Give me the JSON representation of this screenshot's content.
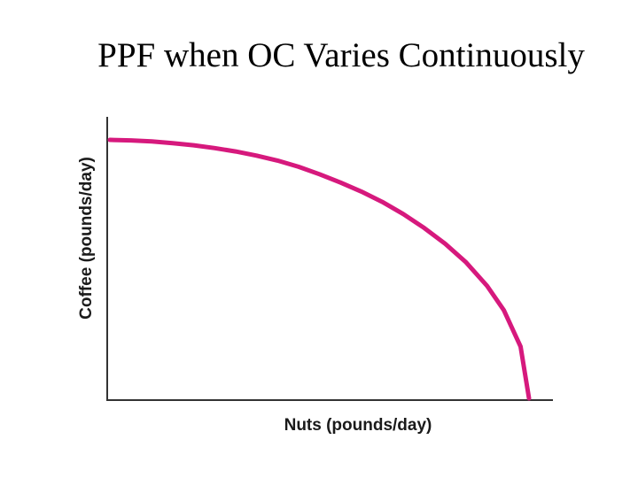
{
  "slide": {
    "title": "PPF when OC Varies Continuously"
  },
  "chart_data": {
    "type": "line",
    "xlabel": "Nuts (pounds/day)",
    "ylabel": "Coffee (pounds/day)",
    "xlim": [
      0,
      1
    ],
    "ylim": [
      0,
      1
    ],
    "grid": false,
    "series": [
      {
        "x": [
          0,
          0.05,
          0.1,
          0.15,
          0.2,
          0.25,
          0.3,
          0.35,
          0.4,
          0.45,
          0.5,
          0.55,
          0.6,
          0.65,
          0.7,
          0.75,
          0.8,
          0.85,
          0.9,
          0.94,
          0.98,
          1.0
        ],
        "y": [
          1.0,
          0.998,
          0.994,
          0.987,
          0.979,
          0.968,
          0.955,
          0.939,
          0.92,
          0.896,
          0.867,
          0.835,
          0.8,
          0.76,
          0.713,
          0.659,
          0.598,
          0.526,
          0.435,
          0.341,
          0.2,
          0.0
        ]
      }
    ],
    "colors": {
      "curve": "#d6197d",
      "axis": "#333333"
    }
  }
}
